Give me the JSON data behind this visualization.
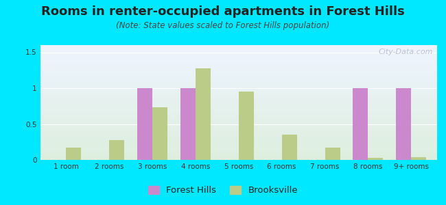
{
  "title": "Rooms in renter-occupied apartments in Forest Hills",
  "subtitle": "(Note: State values scaled to Forest Hills population)",
  "categories": [
    "1 room",
    "2 rooms",
    "3 rooms",
    "4 rooms",
    "5 rooms",
    "6 rooms",
    "7 rooms",
    "8 rooms",
    "9+ rooms"
  ],
  "forest_hills": [
    0,
    0,
    1.0,
    1.0,
    0,
    0,
    0,
    1.0,
    1.0
  ],
  "brooksville": [
    0.17,
    0.28,
    0.73,
    1.28,
    0.95,
    0.35,
    0.17,
    0.03,
    0.04
  ],
  "fh_color": "#cc88cc",
  "bv_color": "#bbcc88",
  "bg_outer": "#00e8ff",
  "bg_plot_top": "#eef4ff",
  "bg_plot_bottom": "#ddeedd",
  "ylim": [
    0,
    1.6
  ],
  "yticks": [
    0,
    0.5,
    1,
    1.5
  ],
  "bar_width": 0.35,
  "watermark": "City-Data.com",
  "title_fontsize": 13,
  "subtitle_fontsize": 8.5,
  "legend_fontsize": 9.5,
  "tick_fontsize": 7.5
}
